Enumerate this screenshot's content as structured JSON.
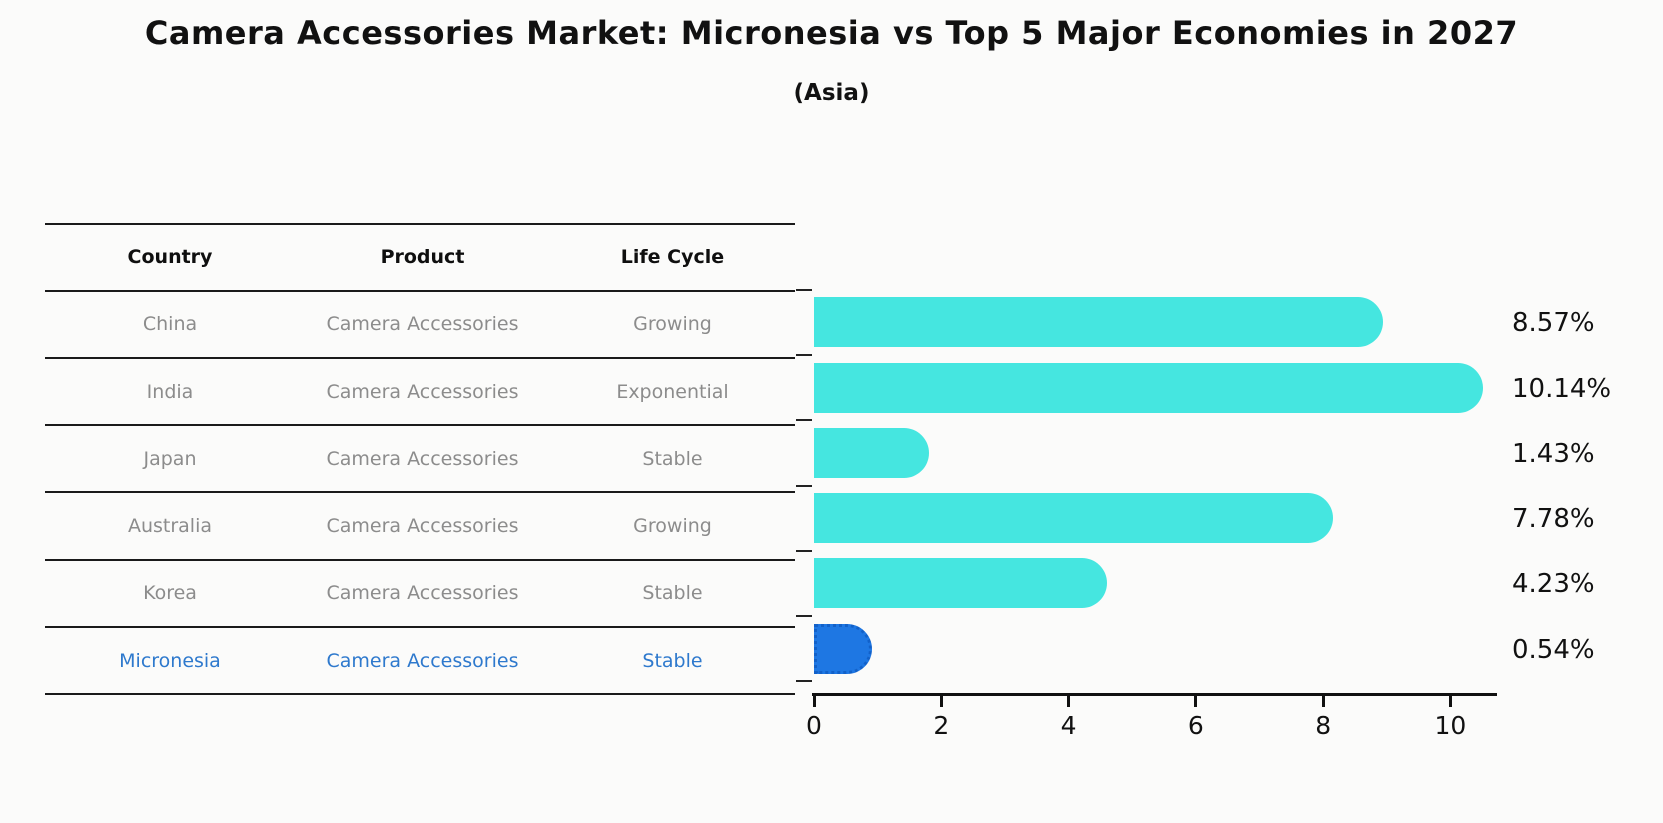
{
  "title": "Camera Accessories Market: Micronesia vs Top 5 Major Economies in 2027",
  "subtitle": "(Asia)",
  "table": {
    "headers": {
      "country": "Country",
      "product": "Product",
      "life_cycle": "Life Cycle"
    }
  },
  "rows": [
    {
      "country": "China",
      "product": "Camera Accessories",
      "life_cycle": "Growing",
      "value": 8.57,
      "label": "8.57%",
      "highlight": false
    },
    {
      "country": "India",
      "product": "Camera Accessories",
      "life_cycle": "Exponential",
      "value": 10.14,
      "label": "10.14%",
      "highlight": false
    },
    {
      "country": "Japan",
      "product": "Camera Accessories",
      "life_cycle": "Stable",
      "value": 1.43,
      "label": "1.43%",
      "highlight": false
    },
    {
      "country": "Australia",
      "product": "Camera Accessories",
      "life_cycle": "Growing",
      "value": 7.78,
      "label": "7.78%",
      "highlight": false
    },
    {
      "country": "Korea",
      "product": "Camera Accessories",
      "life_cycle": "Stable",
      "value": 4.23,
      "label": "4.23%",
      "highlight": false
    },
    {
      "country": "Micronesia",
      "product": "Camera Accessories",
      "life_cycle": "Stable",
      "value": 0.54,
      "label": "0.54%",
      "highlight": true
    }
  ],
  "chart_data": {
    "type": "bar",
    "orientation": "horizontal",
    "title": "Camera Accessories Market: Micronesia vs Top 5 Major Economies in 2027",
    "subtitle": "(Asia)",
    "categories": [
      "China",
      "India",
      "Japan",
      "Australia",
      "Korea",
      "Micronesia"
    ],
    "values": [
      8.57,
      10.14,
      1.43,
      7.78,
      4.23,
      0.54
    ],
    "data_labels": [
      "8.57%",
      "10.14%",
      "1.43%",
      "7.78%",
      "4.23%",
      "0.54%"
    ],
    "series_meta": {
      "product": "Camera Accessories",
      "life_cycle": [
        "Growing",
        "Exponential",
        "Stable",
        "Growing",
        "Stable",
        "Stable"
      ]
    },
    "highlight_index": 5,
    "xlabel": "",
    "ylabel": "",
    "xlim": [
      0,
      10.7
    ],
    "xticks": [
      0,
      2,
      4,
      6,
      8,
      10
    ],
    "grid": false,
    "legend": false,
    "colors": {
      "bar": "#45e6e0",
      "highlight_bar": "#1e77e3",
      "highlight_bar_border": "#1261c9",
      "highlight_text": "#2e79cd",
      "table_text": "#8c8c8c",
      "axis_text": "#111111"
    }
  }
}
